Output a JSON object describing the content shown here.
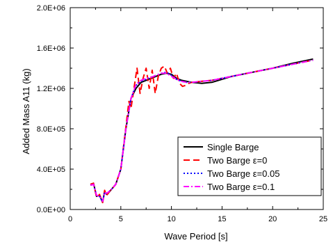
{
  "chart_data": {
    "type": "line",
    "xlabel": "Wave Period [s]",
    "ylabel": "Added Mass A11 (kg)",
    "xlim": [
      0,
      25
    ],
    "ylim": [
      0,
      2000000
    ],
    "xticks": [
      0,
      5,
      10,
      15,
      20,
      25
    ],
    "xtick_labels": [
      "0",
      "5",
      "10",
      "15",
      "20",
      "25"
    ],
    "yticks": [
      0,
      400000,
      800000,
      1200000,
      1600000,
      2000000
    ],
    "ytick_labels": [
      "0.0E+00",
      "4.0E+05",
      "8.0E+05",
      "1.2E+06",
      "1.6E+06",
      "2.0E+06"
    ],
    "grid": false,
    "legend_position": "bottom-right",
    "series": [
      {
        "name": "Single Barge",
        "color": "#000000",
        "dash": "solid",
        "x": [
          2.0,
          2.3,
          2.6,
          2.9,
          3.2,
          3.4,
          3.6,
          4.0,
          4.5,
          5.0,
          5.5,
          6.0,
          6.5,
          7.0,
          7.5,
          8.0,
          8.5,
          9.0,
          9.5,
          10.0,
          10.5,
          11.0,
          11.5,
          12.0,
          13.0,
          14.0,
          15.0,
          16.0,
          18.0,
          20.0,
          22.0,
          24.0
        ],
        "y": [
          250000,
          260000,
          130000,
          140000,
          70000,
          180000,
          150000,
          190000,
          250000,
          400000,
          800000,
          1100000,
          1200000,
          1260000,
          1280000,
          1300000,
          1320000,
          1340000,
          1350000,
          1340000,
          1300000,
          1280000,
          1270000,
          1260000,
          1250000,
          1260000,
          1290000,
          1320000,
          1360000,
          1400000,
          1450000,
          1490000
        ]
      },
      {
        "name": "Two Barge ε=0",
        "color": "#ff0000",
        "dash": "long-dash",
        "x": [
          2.0,
          2.3,
          2.6,
          2.9,
          3.2,
          3.4,
          3.6,
          4.0,
          4.5,
          5.0,
          5.5,
          5.8,
          6.0,
          6.3,
          6.6,
          6.9,
          7.2,
          7.5,
          7.8,
          8.1,
          8.4,
          8.7,
          9.0,
          9.3,
          9.6,
          9.9,
          10.2,
          10.5,
          10.8,
          11.1,
          11.4,
          11.7,
          12.0,
          13.0,
          14.0,
          15.0,
          16.0,
          18.0,
          20.0,
          22.0,
          24.0
        ],
        "y": [
          250000,
          260000,
          120000,
          150000,
          70000,
          190000,
          140000,
          190000,
          250000,
          400000,
          820000,
          1070000,
          1000000,
          1200000,
          1400000,
          1150000,
          1300000,
          1400000,
          1200000,
          1380000,
          1150000,
          1320000,
          1400000,
          1420000,
          1350000,
          1400000,
          1300000,
          1350000,
          1250000,
          1220000,
          1230000,
          1250000,
          1260000,
          1270000,
          1280000,
          1300000,
          1320000,
          1360000,
          1400000,
          1440000,
          1480000
        ]
      },
      {
        "name": "Two Barge ε=0.05",
        "color": "#0000ff",
        "dash": "dot",
        "x": [
          2.0,
          2.3,
          2.6,
          2.9,
          3.2,
          3.4,
          3.6,
          4.0,
          4.5,
          5.0,
          5.5,
          6.0,
          6.5,
          7.0,
          7.5,
          8.0,
          8.5,
          9.0,
          9.5,
          10.0,
          10.5,
          11.0,
          11.5,
          12.0,
          13.0,
          14.0,
          15.0,
          16.0,
          18.0,
          20.0,
          22.0,
          24.0
        ],
        "y": [
          240000,
          250000,
          140000,
          130000,
          80000,
          170000,
          160000,
          190000,
          250000,
          400000,
          800000,
          1100000,
          1230000,
          1270000,
          1290000,
          1310000,
          1330000,
          1350000,
          1360000,
          1330000,
          1290000,
          1270000,
          1260000,
          1260000,
          1270000,
          1280000,
          1300000,
          1320000,
          1360000,
          1400000,
          1440000,
          1480000
        ]
      },
      {
        "name": "Two Barge ε=0.1",
        "color": "#ff00ff",
        "dash": "dash-dot",
        "x": [
          2.0,
          2.3,
          2.6,
          2.9,
          3.2,
          3.4,
          3.6,
          4.0,
          4.5,
          5.0,
          5.5,
          6.0,
          6.5,
          7.0,
          7.5,
          8.0,
          8.5,
          9.0,
          9.5,
          10.0,
          10.5,
          11.0,
          11.5,
          12.0,
          13.0,
          14.0,
          15.0,
          16.0,
          18.0,
          20.0,
          22.0,
          24.0
        ],
        "y": [
          240000,
          250000,
          140000,
          130000,
          80000,
          170000,
          160000,
          190000,
          250000,
          400000,
          800000,
          1100000,
          1240000,
          1280000,
          1300000,
          1310000,
          1330000,
          1350000,
          1350000,
          1320000,
          1290000,
          1270000,
          1260000,
          1260000,
          1270000,
          1280000,
          1300000,
          1320000,
          1360000,
          1400000,
          1440000,
          1480000
        ]
      }
    ]
  }
}
